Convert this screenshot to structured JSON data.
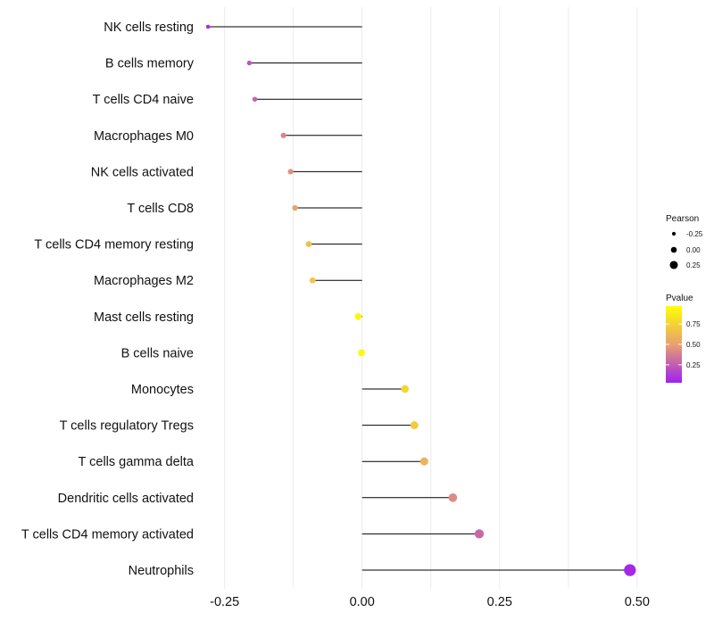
{
  "chart_data": {
    "type": "lollipop",
    "title": "",
    "xlabel": "",
    "ylabel": "",
    "xlim": [
      -0.29,
      0.51
    ],
    "x_ticks": [
      -0.25,
      0.0,
      0.25,
      0.5
    ],
    "x_tick_labels": [
      "-0.25",
      "0.00",
      "0.25",
      "0.50"
    ],
    "grid": true,
    "categories": [
      "NK cells resting",
      "B cells memory",
      "T cells CD4 naive",
      "Macrophages M0",
      "NK cells activated",
      "T cells CD8",
      "T cells CD4 memory resting",
      "Macrophages M2",
      "Mast cells resting",
      "B cells naive",
      "Monocytes",
      "T cells regulatory  Tregs",
      "T cells gamma delta",
      "Dendritic cells activated",
      "T cells CD4 memory activated",
      "Neutrophils"
    ],
    "pearson": [
      -0.28,
      -0.205,
      -0.195,
      -0.143,
      -0.13,
      -0.122,
      -0.097,
      -0.09,
      -0.007,
      -0.001,
      0.078,
      0.095,
      0.113,
      0.165,
      0.213,
      0.487
    ],
    "pvalue": [
      0.05,
      0.2,
      0.26,
      0.4,
      0.45,
      0.52,
      0.68,
      0.7,
      0.95,
      0.97,
      0.78,
      0.72,
      0.6,
      0.42,
      0.28,
      0.03
    ],
    "legend_size": {
      "title": "Pearson",
      "labels": [
        "-0.25",
        "0.00",
        "0.25"
      ],
      "values": [
        -0.25,
        0.0,
        0.25
      ]
    },
    "legend_color": {
      "title": "Pvalue",
      "labels": [
        "0.75",
        "0.50",
        "0.25"
      ],
      "values": [
        0.75,
        0.5,
        0.25
      ],
      "range": [
        0.0,
        1.0
      ],
      "low_color": "#a020f0",
      "mid_color": "#e8a070",
      "high_color": "#ffff00"
    },
    "legend_position": "right"
  }
}
